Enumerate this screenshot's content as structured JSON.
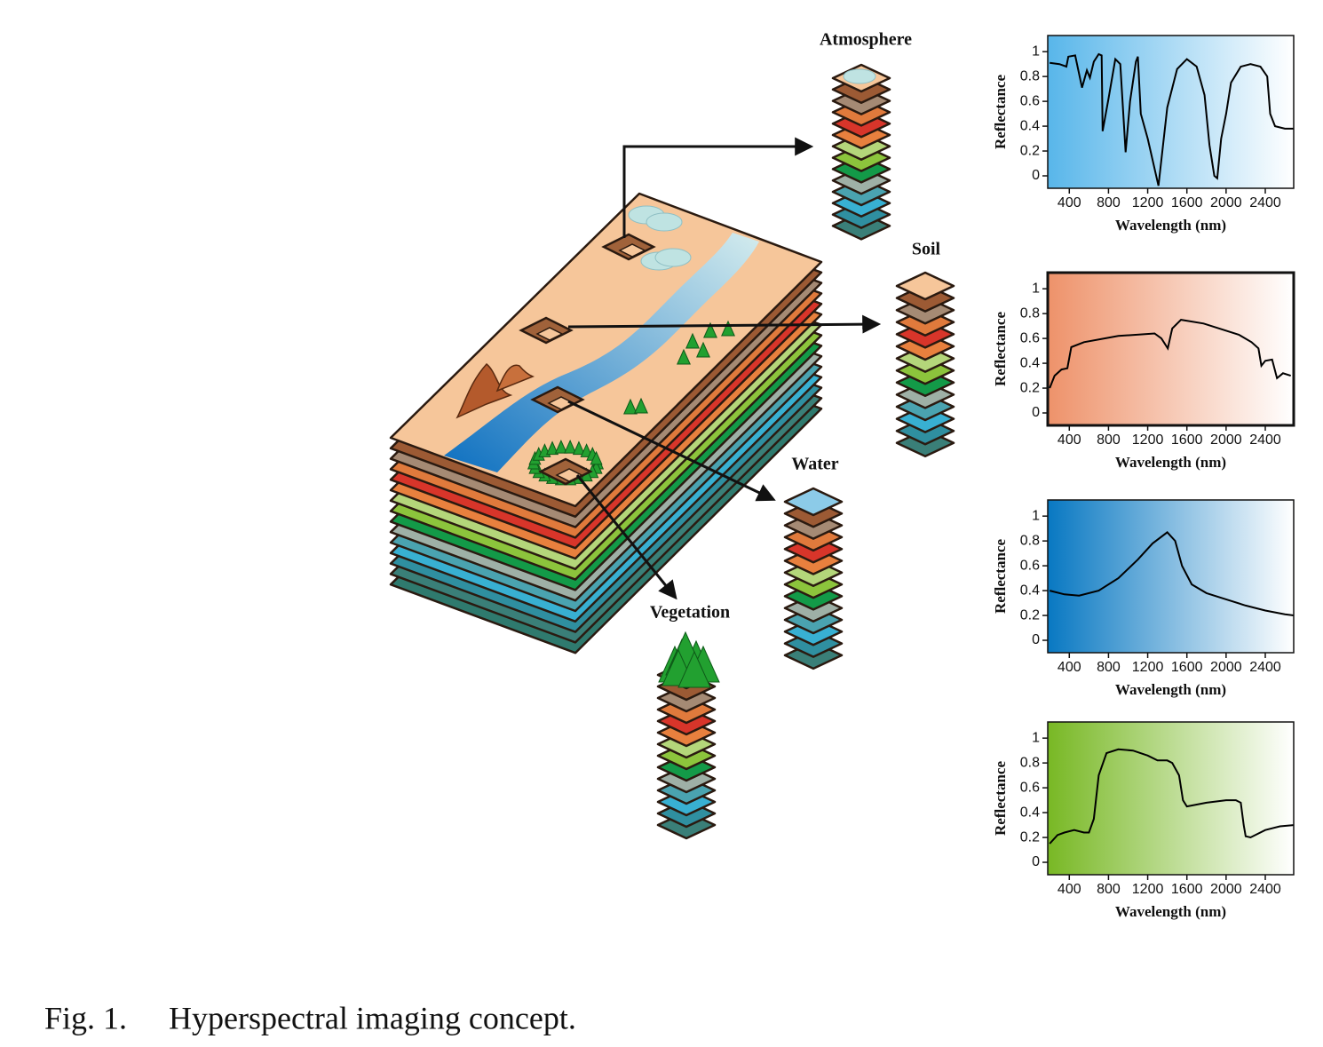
{
  "diagram": {
    "labels": [
      "Atmosphere",
      "Soil",
      "Water",
      "Vegetation"
    ]
  },
  "chart_data": [
    {
      "type": "line",
      "ylabel": "Reflectance",
      "xlabel": "Wavelength (nm)",
      "x": [
        200,
        300,
        370,
        390,
        460,
        530,
        580,
        610,
        650,
        700,
        730,
        740,
        800,
        870,
        920,
        975,
        1020,
        1080,
        1100,
        1130,
        1200,
        1310,
        1400,
        1500,
        1600,
        1700,
        1780,
        1830,
        1880,
        1910,
        1950,
        2000,
        2050,
        2150,
        2250,
        2350,
        2420,
        2450,
        2500,
        2600,
        2690
      ],
      "values": [
        0.91,
        0.9,
        0.88,
        0.96,
        0.97,
        0.71,
        0.85,
        0.79,
        0.92,
        0.98,
        0.97,
        0.36,
        0.62,
        0.94,
        0.9,
        0.19,
        0.6,
        0.92,
        0.96,
        0.5,
        0.3,
        -0.08,
        0.55,
        0.86,
        0.94,
        0.88,
        0.65,
        0.25,
        0.0,
        -0.02,
        0.3,
        0.5,
        0.75,
        0.88,
        0.9,
        0.88,
        0.8,
        0.5,
        0.4,
        0.38,
        0.38
      ],
      "color": "#000000",
      "xlim": [
        180,
        2690
      ],
      "ylim": [
        -0.1,
        1.13
      ],
      "xticks": [
        400,
        800,
        1200,
        1600,
        2000,
        2400
      ],
      "yticks": [
        0,
        0.2,
        0.4,
        0.6,
        0.8,
        1
      ]
    },
    {
      "type": "line",
      "ylabel": "Reflectance",
      "xlabel": "Wavelength (nm)",
      "x": [
        200,
        250,
        320,
        380,
        420,
        550,
        900,
        1270,
        1340,
        1405,
        1450,
        1540,
        1770,
        2130,
        2260,
        2330,
        2360,
        2400,
        2470,
        2520,
        2580,
        2660
      ],
      "values": [
        0.2,
        0.3,
        0.35,
        0.36,
        0.53,
        0.57,
        0.62,
        0.64,
        0.6,
        0.52,
        0.68,
        0.75,
        0.72,
        0.63,
        0.57,
        0.52,
        0.38,
        0.42,
        0.43,
        0.28,
        0.32,
        0.3
      ],
      "color": "#000000",
      "xlim": [
        180,
        2690
      ],
      "ylim": [
        -0.1,
        1.13
      ],
      "xticks": [
        400,
        800,
        1200,
        1600,
        2000,
        2400
      ],
      "yticks": [
        0,
        0.2,
        0.4,
        0.6,
        0.8,
        1
      ]
    },
    {
      "type": "line",
      "ylabel": "Reflectance",
      "xlabel": "Wavelength (nm)",
      "x": [
        200,
        350,
        500,
        700,
        900,
        1100,
        1250,
        1400,
        1480,
        1550,
        1650,
        1800,
        2000,
        2200,
        2400,
        2600,
        2690
      ],
      "values": [
        0.4,
        0.37,
        0.36,
        0.4,
        0.5,
        0.65,
        0.78,
        0.87,
        0.8,
        0.6,
        0.45,
        0.38,
        0.33,
        0.28,
        0.24,
        0.21,
        0.2
      ],
      "color": "#000000",
      "xlim": [
        180,
        2690
      ],
      "ylim": [
        -0.1,
        1.13
      ],
      "xticks": [
        400,
        800,
        1200,
        1600,
        2000,
        2400
      ],
      "yticks": [
        0,
        0.2,
        0.4,
        0.6,
        0.8,
        1
      ]
    },
    {
      "type": "line",
      "ylabel": "Reflectance",
      "xlabel": "Wavelength (nm)",
      "x": [
        200,
        280,
        350,
        450,
        550,
        600,
        650,
        700,
        780,
        900,
        1050,
        1200,
        1300,
        1400,
        1450,
        1520,
        1560,
        1600,
        1800,
        2000,
        2100,
        2150,
        2180,
        2200,
        2250,
        2400,
        2550,
        2690
      ],
      "values": [
        0.15,
        0.22,
        0.24,
        0.26,
        0.24,
        0.24,
        0.35,
        0.7,
        0.88,
        0.91,
        0.9,
        0.86,
        0.82,
        0.82,
        0.8,
        0.7,
        0.5,
        0.45,
        0.48,
        0.5,
        0.5,
        0.48,
        0.3,
        0.21,
        0.2,
        0.26,
        0.29,
        0.3
      ],
      "color": "#000000",
      "xlim": [
        180,
        2690
      ],
      "ylim": [
        -0.1,
        1.13
      ],
      "xticks": [
        400,
        800,
        1200,
        1600,
        2000,
        2400
      ],
      "yticks": [
        0,
        0.2,
        0.4,
        0.6,
        0.8,
        1
      ]
    }
  ],
  "caption": {
    "label": "Fig. 1.",
    "text": "Hyperspectral imaging concept."
  }
}
